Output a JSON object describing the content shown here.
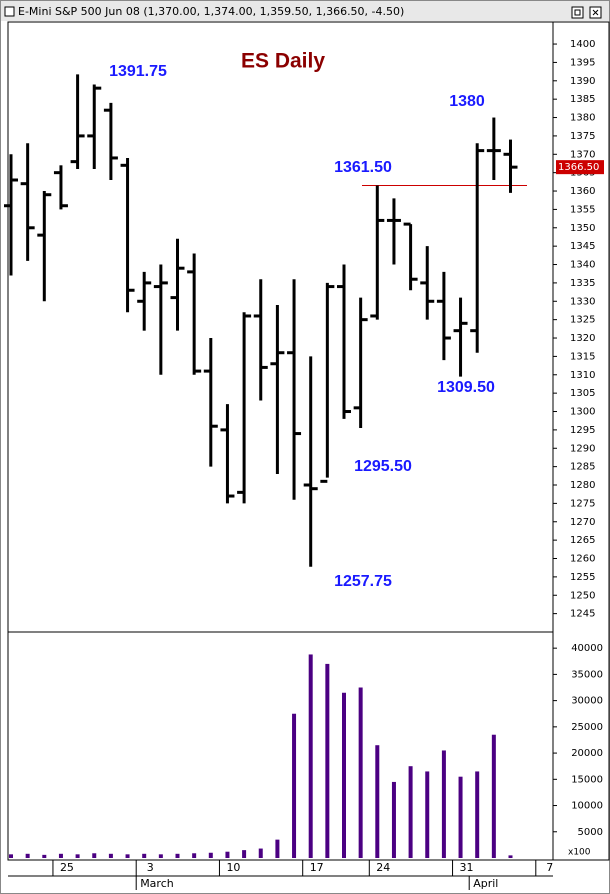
{
  "header": "E-Mini S&P 500 Jun 08 (1,370.00, 1,374.00, 1,359.50, 1,366.50, -4.50)",
  "chart_data": [
    {
      "type": "ohlc",
      "title": "ES Daily",
      "color": "#000000",
      "open": [
        1356,
        1362,
        1348,
        1365,
        1368,
        1375,
        1382,
        1367,
        1330,
        1334,
        1331,
        1338,
        1311,
        1295,
        1278,
        1326,
        1313,
        1316,
        1280,
        1281,
        1334,
        1301,
        1326,
        1352,
        1351,
        1335,
        1330,
        1322,
        1322,
        1371,
        1370,
        null,
        null
      ],
      "high": [
        1370,
        1373,
        1360,
        1367,
        1391.75,
        1389,
        1384,
        1369,
        1338,
        1340,
        1347,
        1343,
        1320,
        1302,
        1327,
        1336,
        1329,
        1336,
        1315,
        1335,
        1340,
        1331,
        1361.5,
        1358,
        1351,
        1345,
        1338,
        1331,
        1373,
        1380,
        1374,
        null,
        null
      ],
      "low": [
        1337,
        1341,
        1330,
        1355,
        1366,
        1366,
        1363,
        1327,
        1322,
        1310,
        1322,
        1310,
        1285,
        1275,
        1275,
        1303,
        1283,
        1276,
        1257.75,
        1282,
        1298,
        1295.5,
        1325,
        1340,
        1333,
        1325,
        1314,
        1309.5,
        1316,
        1363,
        1359.5,
        null,
        null
      ],
      "close": [
        1363,
        1350,
        1359,
        1356,
        1375,
        1388,
        1369,
        1333,
        1335,
        1335,
        1339,
        1311,
        1296,
        1277,
        1326,
        1312,
        1316,
        1294,
        1279,
        1334,
        1300,
        1325,
        1352,
        1352,
        1336,
        1330,
        1320,
        1324,
        1371,
        1371,
        1366.5,
        null,
        null
      ],
      "ylim": [
        1240,
        1406
      ],
      "yticks": [
        1245,
        1250,
        1255,
        1260,
        1265,
        1270,
        1275,
        1280,
        1285,
        1290,
        1295,
        1300,
        1305,
        1310,
        1315,
        1320,
        1325,
        1330,
        1335,
        1340,
        1345,
        1350,
        1355,
        1360,
        1365,
        1370,
        1375,
        1380,
        1385,
        1390,
        1395,
        1400
      ],
      "hline": {
        "value": 1361.5,
        "color": "#cc0000"
      },
      "last_price": {
        "value": 1366.5,
        "label": "1366.50",
        "color": "#cc0000"
      },
      "annotations": [
        "1391.75",
        "1380",
        "1361.50",
        "1309.50",
        "1295.50",
        "1257.75"
      ]
    },
    {
      "type": "bar",
      "color": "#4b0082",
      "y_unit": "x100",
      "categories": [
        null,
        null,
        null,
        "25",
        null,
        null,
        null,
        null,
        "3",
        null,
        null,
        null,
        null,
        "10",
        null,
        null,
        null,
        null,
        "17",
        null,
        null,
        null,
        "24",
        null,
        null,
        null,
        null,
        "31",
        null,
        null,
        null,
        null,
        "7"
      ],
      "months": [
        null,
        null,
        null,
        null,
        null,
        null,
        null,
        null,
        "March",
        null,
        null,
        null,
        null,
        null,
        null,
        null,
        null,
        null,
        null,
        null,
        null,
        null,
        null,
        null,
        null,
        null,
        null,
        null,
        "April",
        null,
        null,
        null,
        null
      ],
      "values": [
        700,
        800,
        600,
        800,
        700,
        900,
        800,
        700,
        800,
        700,
        800,
        900,
        1000,
        1200,
        1500,
        1800,
        3500,
        27500,
        38800,
        37000,
        31500,
        32500,
        21500,
        14500,
        17500,
        16500,
        20500,
        15500,
        16500,
        23500,
        500,
        null,
        null
      ],
      "ylim": [
        0,
        42700
      ],
      "yticks": [
        5000,
        10000,
        15000,
        20000,
        25000,
        30000,
        35000,
        40000
      ]
    }
  ]
}
